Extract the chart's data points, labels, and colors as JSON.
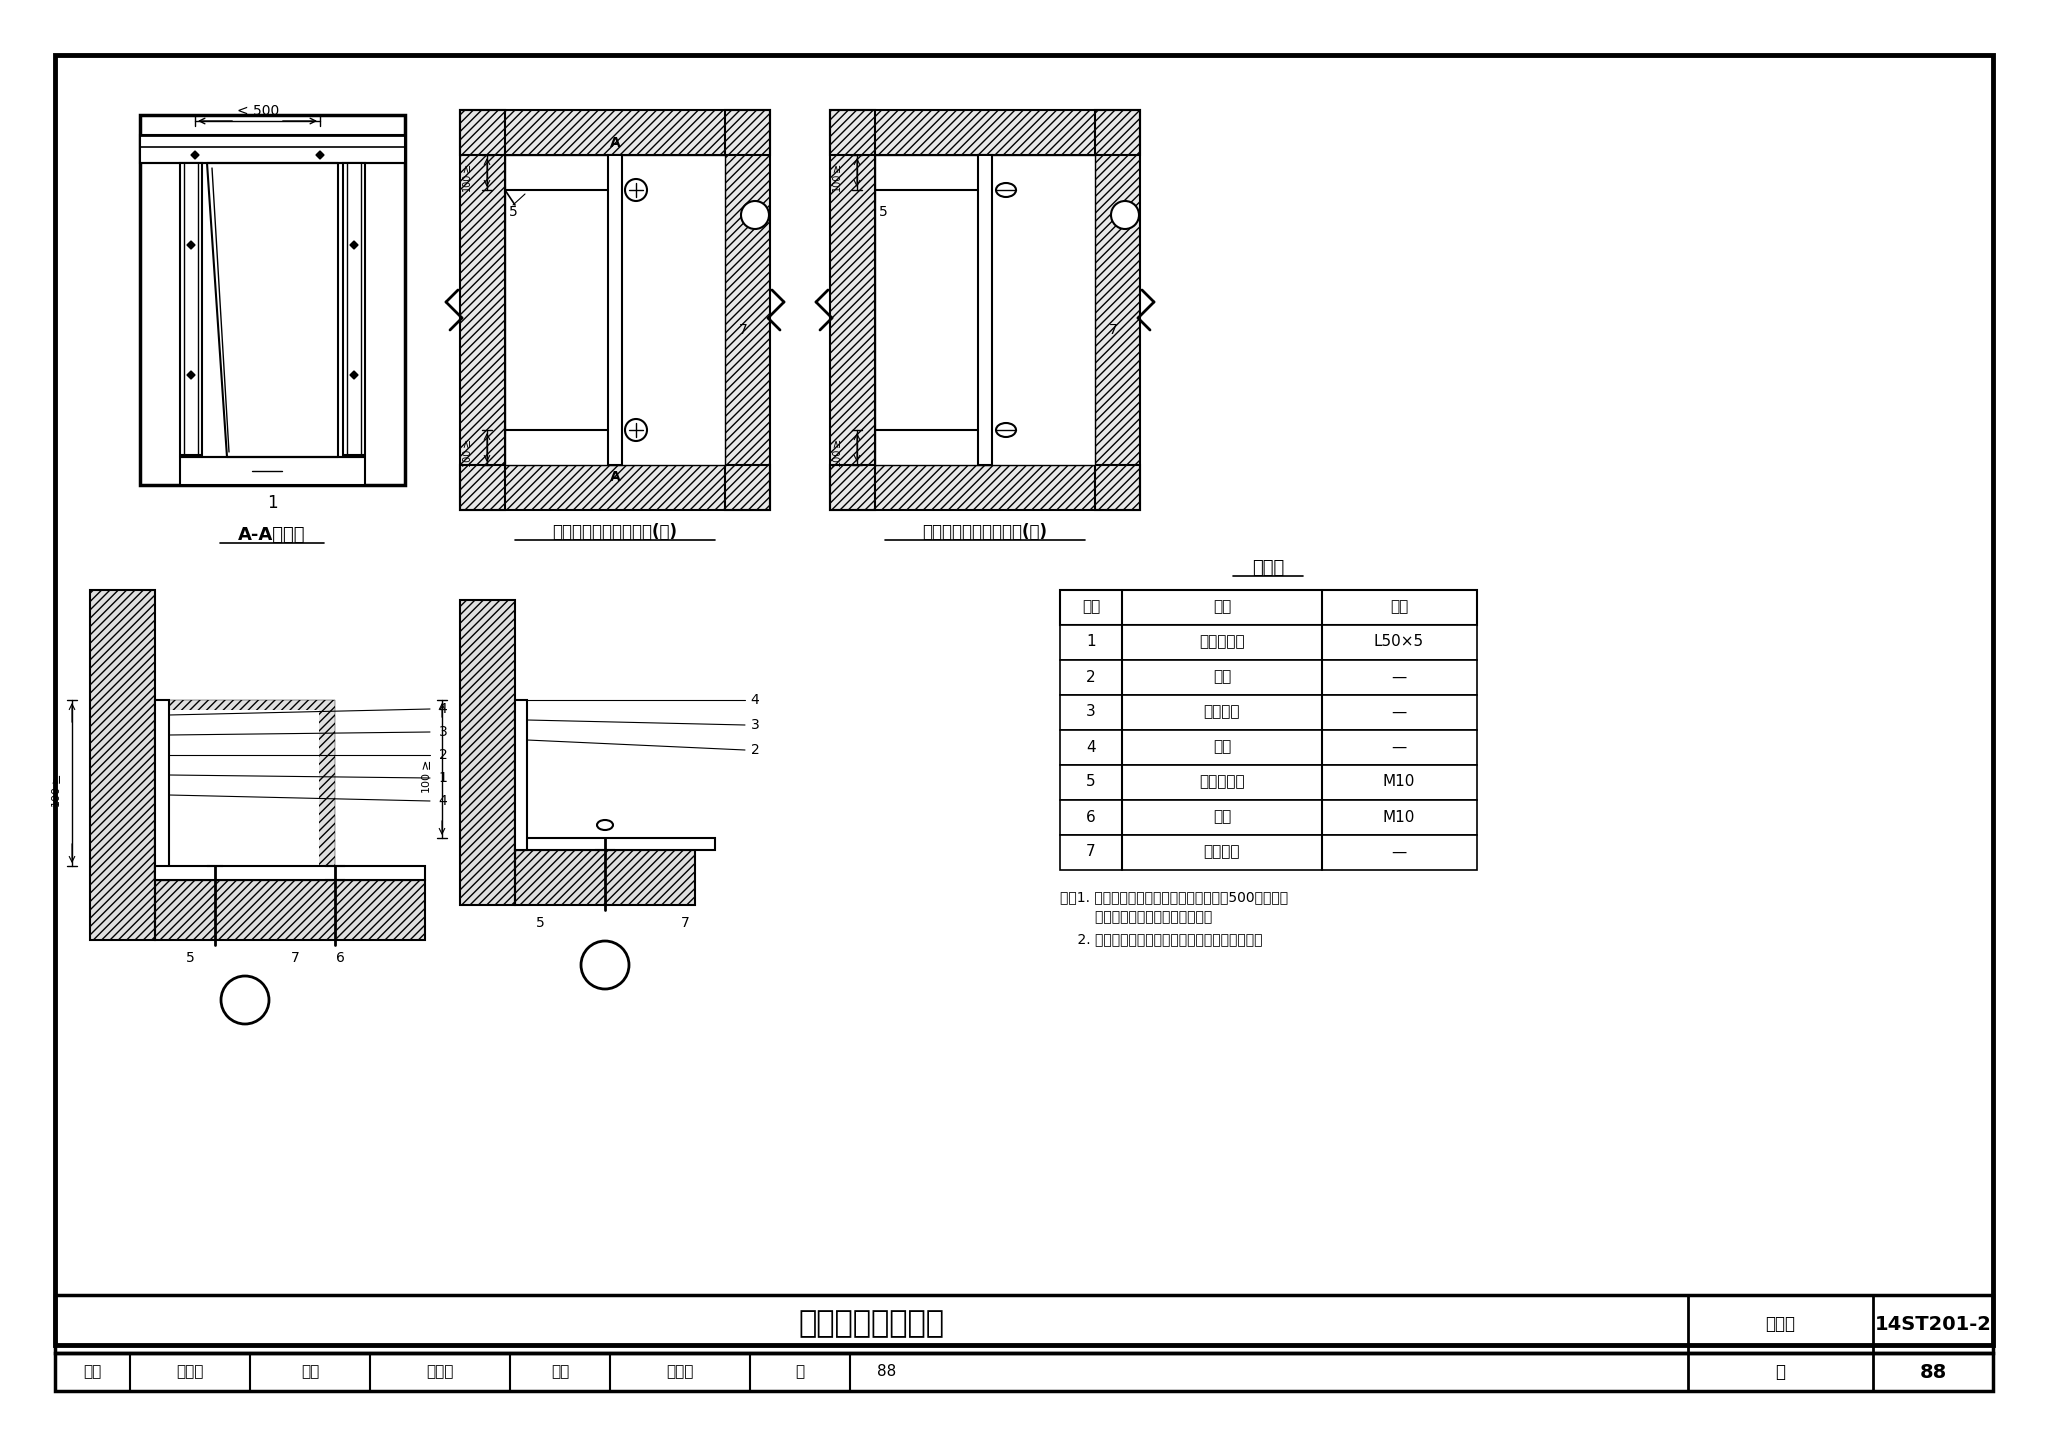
{
  "title": "轨底排热风口安装",
  "figure_number": "14ST201-2",
  "page": "88",
  "background_color": "#ffffff",
  "table_headers": [
    "编号",
    "名称",
    "规格"
  ],
  "table_rows": [
    [
      "1",
      "热镀锌角钢",
      "L50×5"
    ],
    [
      "2",
      "螺母",
      "—"
    ],
    [
      "3",
      "弹簧垫片",
      "—"
    ],
    [
      "4",
      "平垫",
      "—"
    ],
    [
      "5",
      "后切底胀栓",
      "M10"
    ],
    [
      "6",
      "螺栓",
      "M10"
    ],
    [
      "7",
      "百叶风口",
      "—"
    ]
  ],
  "note1a": "注：1. 后切底胀栓间距与螺栓间距都不大于500，且四角",
  "note1b": "        部位应设有后切底胀栓或螺栓。",
  "note2": "    2. 轨底后切底胀栓螺栓安装完成后涂红漆标志。",
  "section_label": "A-A剖面图",
  "install1_label": "轨底排热风口安装方式(一)",
  "install2_label": "轨底排热风口安装方式(二)",
  "material_label": "材料表",
  "dim_500": "< 500",
  "review_text": "审核",
  "draw_name": "崔　澜",
  "check_text": "校对赵东明",
  "design_text": "设计王　借",
  "page_text": "页",
  "atlas_text": "图集号"
}
